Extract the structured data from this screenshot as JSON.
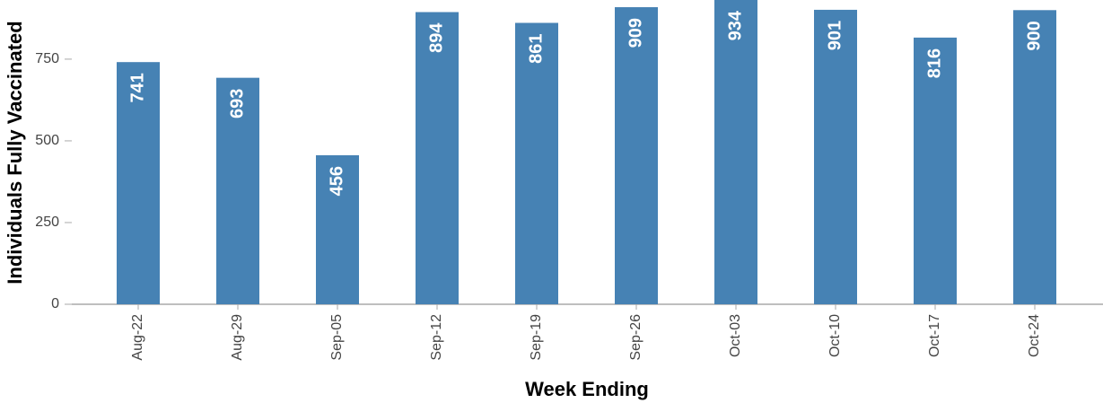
{
  "chart_data": {
    "type": "bar",
    "x_label": "Week Ending",
    "y_label": "Individuals Fully Vaccinated",
    "categories": [
      "Aug-22",
      "Aug-29",
      "Sep-05",
      "Sep-12",
      "Sep-19",
      "Sep-26",
      "Oct-03",
      "Oct-10",
      "Oct-17",
      "Oct-24"
    ],
    "values": [
      741,
      693,
      456,
      894,
      861,
      909,
      934,
      901,
      816,
      900
    ],
    "color": "#4682b4",
    "ylim": [
      0,
      931
    ],
    "yticks": [
      0,
      250,
      500,
      750
    ],
    "grid": false
  }
}
